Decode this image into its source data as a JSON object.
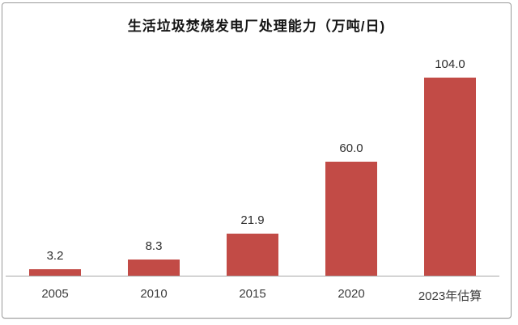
{
  "chart_data": {
    "type": "bar",
    "title": "生活垃圾焚烧发电厂处理能力（万吨/日)",
    "categories": [
      "2005",
      "2010",
      "2015",
      "2020",
      "2023年估算"
    ],
    "values": [
      3.2,
      8.3,
      21.9,
      60.0,
      104.0
    ],
    "value_labels": [
      "3.2",
      "8.3",
      "21.9",
      "60.0",
      "104.0"
    ],
    "xlabel": "",
    "ylabel": "",
    "ylim": [
      0,
      110
    ],
    "grid": false,
    "legend_position": "none",
    "bar_color": "#c24b46",
    "axis_line_color": "#a8a8a8",
    "frame_border_color": "#9a9a9a",
    "title_color": "#151515",
    "label_color": "#2e2e2e",
    "tick_label_color": "#3c3c3c",
    "background_color": "#ffffff"
  }
}
